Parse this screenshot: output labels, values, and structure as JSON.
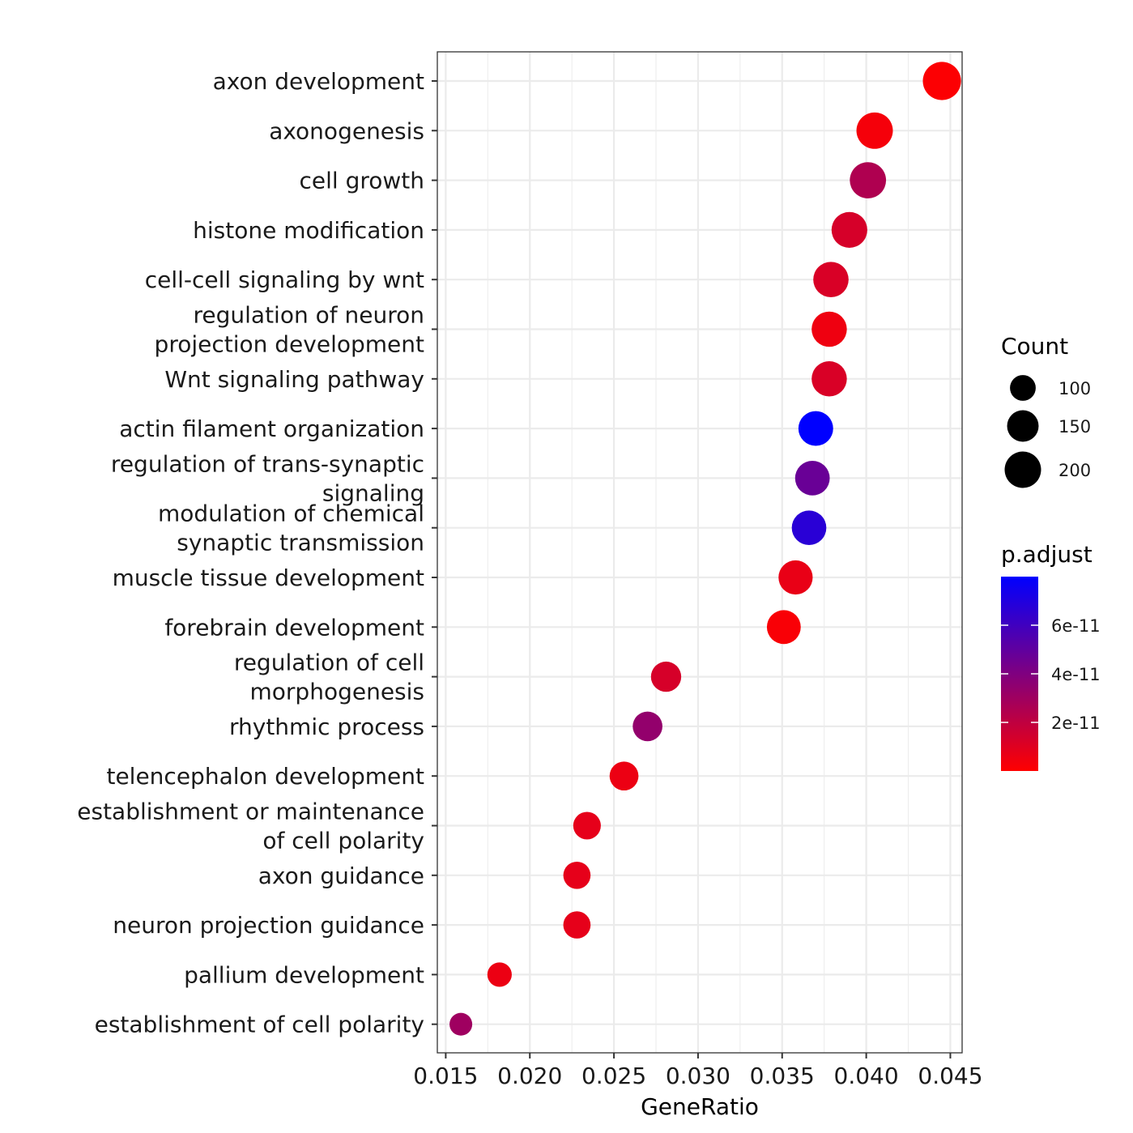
{
  "chart_data": {
    "type": "scatter",
    "xlabel": "GeneRatio",
    "ylabel": "",
    "title": "",
    "xlim": [
      0.0145,
      0.0457
    ],
    "x_ticks": [
      "0.015",
      "0.020",
      "0.025",
      "0.030",
      "0.035",
      "0.040",
      "0.045"
    ],
    "x_tick_values": [
      0.015,
      0.02,
      0.025,
      0.03,
      0.035,
      0.04,
      0.045
    ],
    "grid": true,
    "legend_placement": "right",
    "points": [
      {
        "label": [
          "axon development"
        ],
        "x": 0.0445,
        "count": 220,
        "p_adjust": 1e-12
      },
      {
        "label": [
          "axonogenesis"
        ],
        "x": 0.0405,
        "count": 200,
        "p_adjust": 3e-12
      },
      {
        "label": [
          "cell growth"
        ],
        "x": 0.0401,
        "count": 198,
        "p_adjust": 2.5e-11
      },
      {
        "label": [
          "histone modification"
        ],
        "x": 0.039,
        "count": 193,
        "p_adjust": 1.3e-11
      },
      {
        "label": [
          "cell-cell signaling by wnt"
        ],
        "x": 0.0379,
        "count": 188,
        "p_adjust": 1.2e-11
      },
      {
        "label": [
          "regulation of neuron",
          "projection development"
        ],
        "x": 0.0378,
        "count": 187,
        "p_adjust": 5e-12
      },
      {
        "label": [
          "Wnt signaling pathway"
        ],
        "x": 0.0378,
        "count": 187,
        "p_adjust": 1.2e-11
      },
      {
        "label": [
          "actin filament organization"
        ],
        "x": 0.037,
        "count": 182,
        "p_adjust": 8e-11
      },
      {
        "label": [
          "regulation of trans-synaptic",
          "signaling"
        ],
        "x": 0.0368,
        "count": 181,
        "p_adjust": 4.7e-11
      },
      {
        "label": [
          "modulation of chemical",
          "synaptic transmission"
        ],
        "x": 0.0366,
        "count": 180,
        "p_adjust": 6.7e-11
      },
      {
        "label": [
          "muscle tissue development"
        ],
        "x": 0.0358,
        "count": 176,
        "p_adjust": 7e-12
      },
      {
        "label": [
          "forebrain development"
        ],
        "x": 0.0351,
        "count": 173,
        "p_adjust": 2e-12
      },
      {
        "label": [
          "regulation of cell",
          "morphogenesis"
        ],
        "x": 0.0281,
        "count": 138,
        "p_adjust": 1.3e-11
      },
      {
        "label": [
          "rhythmic process"
        ],
        "x": 0.027,
        "count": 133,
        "p_adjust": 3.4e-11
      },
      {
        "label": [
          "telencephalon development"
        ],
        "x": 0.0256,
        "count": 126,
        "p_adjust": 6e-12
      },
      {
        "label": [
          "establishment or maintenance",
          "of cell polarity"
        ],
        "x": 0.0234,
        "count": 115,
        "p_adjust": 8e-12
      },
      {
        "label": [
          "axon guidance"
        ],
        "x": 0.0228,
        "count": 112,
        "p_adjust": 8e-12
      },
      {
        "label": [
          "neuron projection guidance"
        ],
        "x": 0.0228,
        "count": 112,
        "p_adjust": 8e-12
      },
      {
        "label": [
          "pallium development"
        ],
        "x": 0.0182,
        "count": 90,
        "p_adjust": 6e-12
      },
      {
        "label": [
          "establishment of cell polarity"
        ],
        "x": 0.0159,
        "count": 78,
        "p_adjust": 3e-11
      }
    ],
    "size_legend": {
      "title": "Count",
      "entries": [
        {
          "label": "100",
          "value": 100
        },
        {
          "label": "150",
          "value": 150
        },
        {
          "label": "200",
          "value": 200
        }
      ]
    },
    "color_legend": {
      "title": "p.adjust",
      "min": 0,
      "max": 8e-11,
      "low_color": "#ff0000",
      "high_color": "#0000ff",
      "ticks": [
        {
          "label": "2e-11",
          "value": 2e-11
        },
        {
          "label": "4e-11",
          "value": 4e-11
        },
        {
          "label": "6e-11",
          "value": 6e-11
        }
      ]
    }
  }
}
